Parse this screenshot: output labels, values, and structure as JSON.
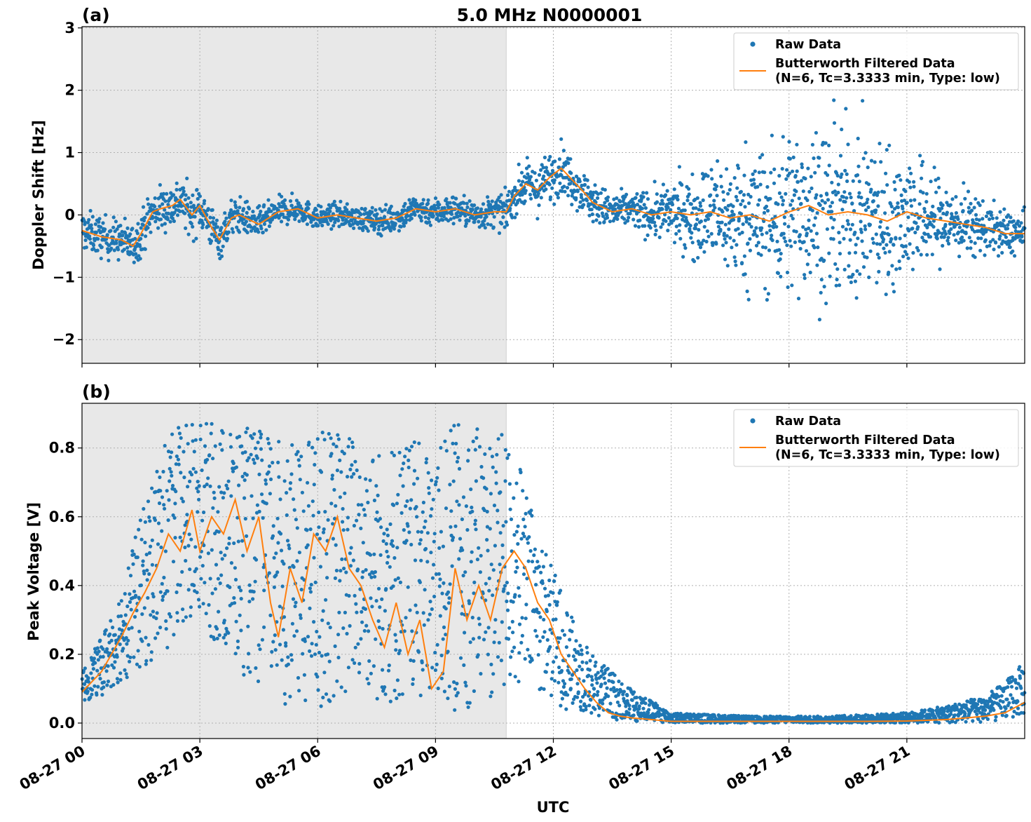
{
  "figure": {
    "title": "5.0 MHz N0000001",
    "xlabel": "UTC",
    "x_tick_labels": [
      "08-27 00",
      "08-27 03",
      "08-27 06",
      "08-27 09",
      "08-27 12",
      "08-27 15",
      "08-27 18",
      "08-27 21"
    ],
    "colors": {
      "raw": "#1f77b4",
      "filtered": "#ff7f0e",
      "night_shade": "#e8e8e8",
      "grid": "#b0b0b0"
    }
  },
  "chart_data": [
    {
      "type": "scatter",
      "panel_label": "(a)",
      "ylabel": "Doppler Shift [Hz]",
      "xlim_hours": [
        0,
        24
      ],
      "ylim": [
        -2.38,
        3.02
      ],
      "yticks": [
        -2,
        -1,
        0,
        1,
        2,
        3
      ],
      "ytick_labels": [
        "−2",
        "−1",
        "0",
        "1",
        "2",
        "3"
      ],
      "shaded_region_hours": [
        0,
        10.8
      ],
      "grid": true,
      "legend": {
        "placement": "top-right",
        "entries": [
          {
            "label": "Raw Data",
            "kind": "marker"
          },
          {
            "label": "Butterworth Filtered Data",
            "label_line2": "(N=6, Tc=3.3333 min, Type: low)",
            "kind": "line"
          }
        ]
      },
      "series": [
        {
          "name": "Butterworth Filtered Data",
          "kind": "line",
          "x": [
            0,
            0.5,
            1,
            1.3,
            1.5,
            1.8,
            2.0,
            2.3,
            2.5,
            2.8,
            3.0,
            3.3,
            3.5,
            3.8,
            4.0,
            4.5,
            5.0,
            5.5,
            6.0,
            6.5,
            7.0,
            7.5,
            8.0,
            8.5,
            9.0,
            9.5,
            10.0,
            10.5,
            10.8,
            11.0,
            11.3,
            11.6,
            11.9,
            12.2,
            12.5,
            12.8,
            13.0,
            13.5,
            14.0,
            14.5,
            15.0,
            15.5,
            16.0,
            16.5,
            17.0,
            17.5,
            18.0,
            18.5,
            19.0,
            19.5,
            20.0,
            20.5,
            21.0,
            21.5,
            22.0,
            22.5,
            23.0,
            23.5,
            24.0
          ],
          "y": [
            -0.25,
            -0.35,
            -0.4,
            -0.5,
            -0.3,
            0.05,
            0.1,
            0.15,
            0.25,
            0.0,
            0.15,
            -0.2,
            -0.4,
            -0.05,
            0.0,
            -0.15,
            0.05,
            0.1,
            -0.05,
            0.0,
            -0.05,
            -0.1,
            -0.05,
            0.1,
            0.05,
            0.1,
            0.0,
            0.05,
            0.05,
            0.3,
            0.5,
            0.4,
            0.6,
            0.75,
            0.55,
            0.35,
            0.2,
            0.05,
            0.1,
            0.0,
            0.05,
            0.0,
            0.05,
            -0.05,
            0.0,
            -0.1,
            0.05,
            0.15,
            0.0,
            0.05,
            0.0,
            -0.1,
            0.05,
            -0.05,
            -0.1,
            -0.15,
            -0.2,
            -0.3,
            -0.3
          ]
        },
        {
          "name": "Raw Data",
          "kind": "scatter_envelope",
          "x": [
            0,
            1,
            2,
            3,
            4,
            5,
            6,
            7,
            8,
            9,
            10,
            10.8,
            11.5,
            12,
            12.5,
            13,
            14,
            15,
            16,
            17,
            18,
            19,
            20,
            21,
            22,
            23,
            24
          ],
          "spread": [
            0.35,
            0.35,
            0.4,
            0.4,
            0.3,
            0.25,
            0.2,
            0.2,
            0.25,
            0.25,
            0.25,
            0.3,
            0.4,
            0.45,
            0.4,
            0.35,
            0.3,
            0.5,
            0.9,
            1.2,
            1.4,
            1.5,
            1.4,
            1.1,
            0.7,
            0.45,
            0.35
          ]
        }
      ]
    },
    {
      "type": "scatter",
      "panel_label": "(b)",
      "ylabel": "Peak Voltage [V]",
      "xlim_hours": [
        0,
        24
      ],
      "ylim": [
        -0.045,
        0.93
      ],
      "yticks": [
        0.0,
        0.2,
        0.4,
        0.6,
        0.8
      ],
      "ytick_labels": [
        "0.0",
        "0.2",
        "0.4",
        "0.6",
        "0.8"
      ],
      "shaded_region_hours": [
        0,
        10.8
      ],
      "grid": true,
      "legend": {
        "placement": "top-right",
        "entries": [
          {
            "label": "Raw Data",
            "kind": "marker"
          },
          {
            "label": "Butterworth Filtered Data",
            "label_line2": "(N=6, Tc=3.3333 min, Type: low)",
            "kind": "line"
          }
        ]
      },
      "series": [
        {
          "name": "Butterworth Filtered Data",
          "kind": "line",
          "x": [
            0,
            0.5,
            1.0,
            1.3,
            1.6,
            1.9,
            2.2,
            2.5,
            2.8,
            3.0,
            3.3,
            3.6,
            3.9,
            4.2,
            4.5,
            4.8,
            5.0,
            5.3,
            5.6,
            5.9,
            6.2,
            6.5,
            6.8,
            7.1,
            7.4,
            7.7,
            8.0,
            8.3,
            8.6,
            8.9,
            9.2,
            9.5,
            9.8,
            10.1,
            10.4,
            10.7,
            11.0,
            11.3,
            11.6,
            11.9,
            12.2,
            12.5,
            12.8,
            13.1,
            13.4,
            13.7,
            14.0,
            14.5,
            15.0,
            16.0,
            17.0,
            18.0,
            19.0,
            20.0,
            21.0,
            22.0,
            22.5,
            23.0,
            23.5,
            24.0
          ],
          "y": [
            0.09,
            0.15,
            0.25,
            0.32,
            0.38,
            0.45,
            0.55,
            0.5,
            0.62,
            0.5,
            0.6,
            0.55,
            0.65,
            0.5,
            0.6,
            0.35,
            0.25,
            0.45,
            0.35,
            0.55,
            0.5,
            0.6,
            0.45,
            0.4,
            0.3,
            0.22,
            0.35,
            0.2,
            0.3,
            0.1,
            0.15,
            0.45,
            0.3,
            0.4,
            0.3,
            0.45,
            0.5,
            0.45,
            0.35,
            0.3,
            0.2,
            0.15,
            0.1,
            0.06,
            0.03,
            0.02,
            0.015,
            0.01,
            0.005,
            0.005,
            0.005,
            0.005,
            0.005,
            0.005,
            0.006,
            0.01,
            0.015,
            0.02,
            0.03,
            0.06
          ]
        },
        {
          "name": "Raw Data",
          "kind": "scatter_envelope",
          "x": [
            0,
            0.5,
            1.0,
            1.5,
            2.0,
            2.5,
            3.0,
            3.5,
            4.0,
            4.5,
            5.0,
            5.5,
            6.0,
            6.5,
            7.0,
            7.5,
            8.0,
            8.5,
            9.0,
            9.5,
            10.0,
            10.5,
            11.0,
            11.5,
            12.0,
            12.5,
            13.0,
            13.5,
            14.0,
            15.0,
            17.0,
            19.0,
            21.0,
            22.0,
            23.0,
            23.5,
            24.0
          ],
          "low": [
            0.06,
            0.08,
            0.12,
            0.15,
            0.18,
            0.22,
            0.28,
            0.2,
            0.15,
            0.1,
            0.05,
            0.05,
            0.04,
            0.05,
            0.1,
            0.05,
            0.04,
            0.04,
            0.03,
            0.03,
            0.05,
            0.06,
            0.08,
            0.1,
            0.06,
            0.03,
            0.02,
            0.01,
            0.005,
            0.0,
            0.0,
            0.0,
            0.0,
            0.0,
            0.0,
            0.01,
            0.02
          ],
          "high": [
            0.15,
            0.25,
            0.4,
            0.6,
            0.8,
            0.87,
            0.88,
            0.87,
            0.87,
            0.85,
            0.83,
            0.8,
            0.85,
            0.86,
            0.84,
            0.8,
            0.83,
            0.82,
            0.78,
            0.88,
            0.86,
            0.85,
            0.82,
            0.6,
            0.45,
            0.3,
            0.2,
            0.15,
            0.1,
            0.03,
            0.02,
            0.02,
            0.03,
            0.05,
            0.08,
            0.12,
            0.18
          ]
        }
      ]
    }
  ]
}
